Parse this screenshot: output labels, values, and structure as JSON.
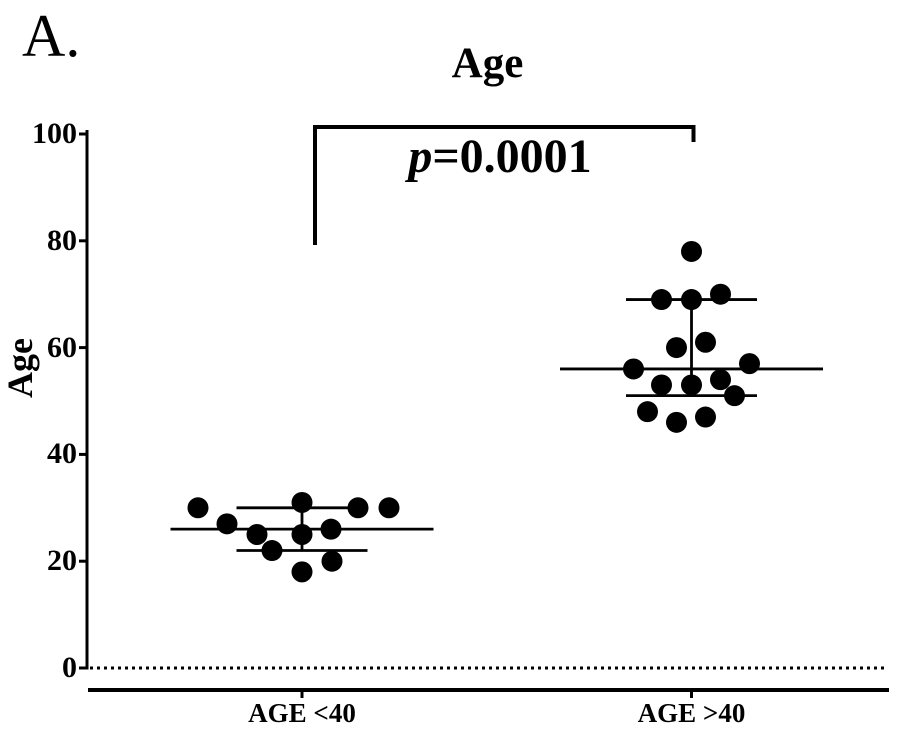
{
  "panel_label": "A.",
  "title": "Age",
  "annotation": {
    "p_symbol": "p",
    "p_rest": "=0.0001"
  },
  "y_axis": {
    "title": "Age",
    "tick_labels": [
      "0",
      "20",
      "40",
      "60",
      "80",
      "100"
    ]
  },
  "x_axis": {
    "categories": [
      "AGE <40",
      "AGE >40"
    ]
  },
  "colors": {
    "ink": "#000000",
    "background": "#ffffff"
  },
  "chart_data": {
    "type": "scatter",
    "title": "Age",
    "ylabel": "Age",
    "ylim": [
      0,
      100
    ],
    "yticks": [
      0,
      20,
      40,
      60,
      80,
      100
    ],
    "categories": [
      "AGE <40",
      "AGE >40"
    ],
    "error_style": "median_with_interquartile_range",
    "baseline": {
      "y": 0,
      "style": "dotted"
    },
    "significance": {
      "groups": [
        "AGE <40",
        "AGE >40"
      ],
      "label": "p=0.0001"
    },
    "legend": "none",
    "grid": false,
    "series": [
      {
        "name": "AGE <40",
        "n": 11,
        "values": [
          30,
          27,
          25,
          22,
          31,
          25,
          18,
          26,
          20,
          30,
          30
        ],
        "median": 26,
        "q1": 22,
        "q3": 30,
        "jitter_dx": [
          -104,
          -75,
          -45,
          -30,
          0,
          0,
          0,
          29,
          30,
          56,
          87
        ]
      },
      {
        "name": "AGE >40",
        "n": 15,
        "values": [
          78,
          69,
          69,
          70,
          60,
          61,
          56,
          57,
          53,
          53,
          54,
          51,
          48,
          46,
          47
        ],
        "median": 56,
        "q1": 51,
        "q3": 69,
        "jitter_dx": [
          0,
          -30,
          0,
          29,
          -15,
          14,
          -58,
          58,
          -30,
          0,
          29,
          43,
          -44,
          -15,
          14
        ]
      }
    ]
  }
}
